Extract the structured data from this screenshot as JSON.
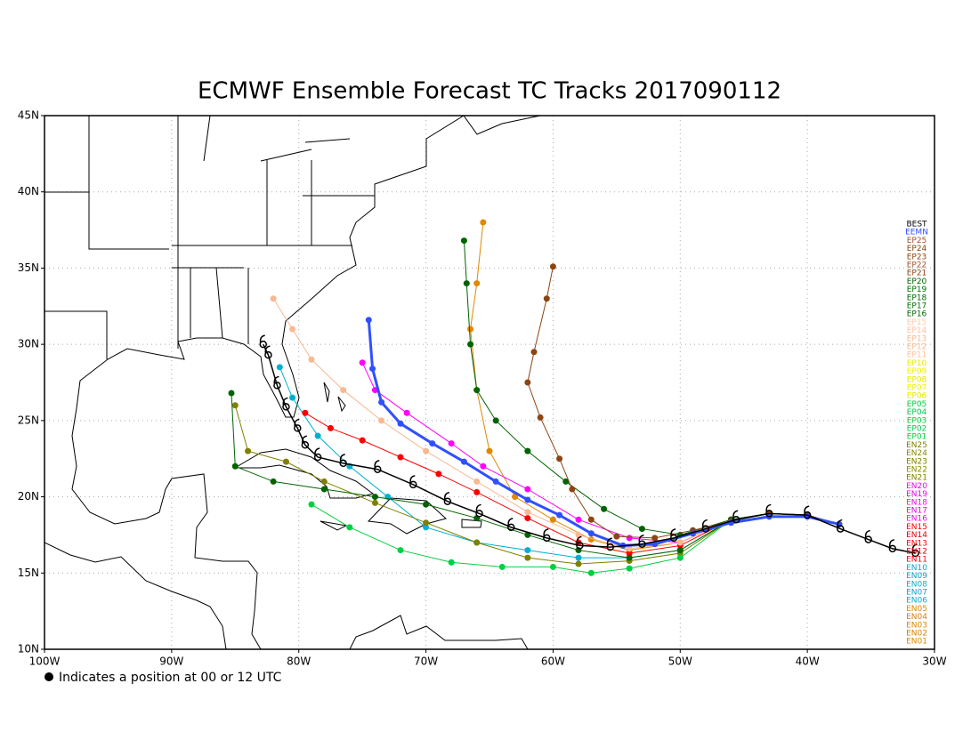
{
  "title": "ECMWF Ensemble Forecast TC Tracks 2017090112",
  "note": "Indicates a position at 00 or 12 UTC",
  "map": {
    "lonlim": [
      -100,
      -30
    ],
    "latlim": [
      10,
      45
    ],
    "lonticks": [
      {
        "value": -100,
        "label": "100W"
      },
      {
        "value": -90,
        "label": "90W"
      },
      {
        "value": -80,
        "label": "80W"
      },
      {
        "value": -70,
        "label": "70W"
      },
      {
        "value": -60,
        "label": "60W"
      },
      {
        "value": -50,
        "label": "50W"
      },
      {
        "value": -40,
        "label": "40W"
      },
      {
        "value": -30,
        "label": "30W"
      }
    ],
    "latticks": [
      {
        "value": 10,
        "label": "10N"
      },
      {
        "value": 15,
        "label": "15N"
      },
      {
        "value": 20,
        "label": "20N"
      },
      {
        "value": 25,
        "label": "25N"
      },
      {
        "value": 30,
        "label": "30N"
      },
      {
        "value": 35,
        "label": "35N"
      },
      {
        "value": 40,
        "label": "40N"
      },
      {
        "value": 45,
        "label": "45N"
      }
    ],
    "grid": true
  },
  "tracks": [
    {
      "name": "BEST",
      "color": "#000000",
      "lon": [
        -31.5,
        -33.3,
        -35.2,
        -37.4,
        -40,
        -43,
        -45.6,
        -48,
        -50.5,
        -53,
        -55.5,
        -57.9,
        -60.5,
        -63.3,
        -65.8,
        -68.3,
        -71,
        -73.8,
        -76.5,
        -78.5,
        -79.5,
        -80.1,
        -81,
        -81.7,
        -82.4,
        -82.8
      ],
      "lat": [
        16.3,
        16.6,
        17.2,
        17.9,
        18.8,
        18.9,
        18.5,
        17.9,
        17.3,
        16.9,
        16.7,
        16.8,
        17.3,
        18.0,
        18.9,
        19.7,
        20.8,
        21.8,
        22.2,
        22.6,
        23.4,
        24.5,
        25.9,
        27.3,
        29.3,
        30.0
      ]
    },
    {
      "name": "EEMN",
      "color": "#3050ff",
      "lon": [
        -37.5,
        -40,
        -43,
        -46,
        -49,
        -52,
        -54.5,
        -57,
        -59.5,
        -62,
        -64.5,
        -67,
        -69.5,
        -72,
        -73.5,
        -74.2,
        -74.5
      ],
      "lat": [
        18.2,
        18.7,
        18.7,
        18.3,
        17.6,
        16.9,
        16.8,
        17.6,
        18.8,
        19.8,
        21.0,
        22.3,
        23.5,
        24.8,
        26.2,
        28.4,
        31.6
      ]
    },
    {
      "name": "EP25",
      "color": "#a0522d"
    },
    {
      "name": "EP24",
      "color": "#8b4513",
      "lon": [
        -37.5,
        -40,
        -43,
        -46,
        -49,
        -52,
        -55,
        -57,
        -58.5,
        -59.5,
        -61,
        -62,
        -61.5,
        -60.5,
        -60
      ],
      "lat": [
        18.2,
        18.8,
        18.9,
        18.4,
        17.8,
        17.3,
        17.4,
        18.5,
        20.5,
        22.5,
        25.2,
        27.5,
        29.5,
        33.0,
        35.1
      ]
    },
    {
      "name": "EP23",
      "color": "#8b4513"
    },
    {
      "name": "EP22",
      "color": "#a0522d"
    },
    {
      "name": "EP21",
      "color": "#8b4513"
    },
    {
      "name": "EP20",
      "color": "#006400",
      "lon": [
        -37.5,
        -40,
        -43,
        -46,
        -50,
        -53,
        -56,
        -59,
        -62,
        -64.5,
        -66,
        -66.5,
        -66.8,
        -67
      ],
      "lat": [
        18.2,
        18.8,
        18.9,
        18.5,
        17.5,
        17.9,
        19.2,
        21.0,
        23.0,
        25.0,
        27.0,
        30.0,
        34.0,
        36.8
      ]
    },
    {
      "name": "EP19",
      "color": "#007000"
    },
    {
      "name": "EP18",
      "color": "#006400"
    },
    {
      "name": "EP17",
      "color": "#007000"
    },
    {
      "name": "EP16",
      "color": "#006400",
      "lon": [
        -37.5,
        -40,
        -43,
        -46,
        -50,
        -54,
        -58,
        -62,
        -66,
        -70,
        -74,
        -78,
        -82,
        -85,
        -85.3
      ],
      "lat": [
        18.2,
        18.8,
        18.9,
        18.5,
        16.5,
        16.0,
        16.5,
        17.5,
        18.6,
        19.5,
        20.0,
        20.5,
        21.0,
        22.0,
        26.8
      ]
    },
    {
      "name": "EP15",
      "color": "#ffc8a8"
    },
    {
      "name": "EP14",
      "color": "#ffc0a0"
    },
    {
      "name": "EP13",
      "color": "#f8b890"
    },
    {
      "name": "EP12",
      "color": "#f8b890",
      "lon": [
        -37.5,
        -40,
        -43,
        -46,
        -50,
        -54,
        -58,
        -62,
        -66,
        -70,
        -73.5,
        -76.5,
        -79,
        -80.5,
        -82
      ],
      "lat": [
        18.2,
        18.8,
        18.9,
        18.5,
        17.0,
        16.6,
        17.5,
        19.0,
        21.0,
        23.0,
        25.0,
        27.0,
        29.0,
        31.0,
        33.0
      ]
    },
    {
      "name": "EP11",
      "color": "#ffc0a0"
    },
    {
      "name": "EP10",
      "color": "#e8e800"
    },
    {
      "name": "EP09",
      "color": "#f0f000"
    },
    {
      "name": "EP08",
      "color": "#e8e800"
    },
    {
      "name": "EP07",
      "color": "#f0f000"
    },
    {
      "name": "EP06",
      "color": "#e8e800"
    },
    {
      "name": "EP05",
      "color": "#00d040",
      "lon": [
        -37.5,
        -40,
        -43,
        -46,
        -50,
        -54,
        -57,
        -60,
        -64,
        -68,
        -72,
        -76,
        -79
      ],
      "lat": [
        18.2,
        18.8,
        18.9,
        18.5,
        16.0,
        15.3,
        15.0,
        15.4,
        15.4,
        15.7,
        16.5,
        18.0,
        19.5
      ]
    },
    {
      "name": "EP04",
      "color": "#00c850"
    },
    {
      "name": "EP03",
      "color": "#00d040"
    },
    {
      "name": "EP02",
      "color": "#00c850"
    },
    {
      "name": "EP01",
      "color": "#00d040"
    },
    {
      "name": "EN25",
      "color": "#808000"
    },
    {
      "name": "EN24",
      "color": "#8a8a00"
    },
    {
      "name": "EN23",
      "color": "#808000",
      "lon": [
        -37.5,
        -40,
        -43,
        -46,
        -50,
        -54,
        -58,
        -62,
        -66,
        -70,
        -74,
        -78,
        -81,
        -84,
        -85
      ],
      "lat": [
        18.2,
        18.8,
        18.9,
        18.5,
        16.3,
        15.8,
        15.6,
        16.0,
        17.0,
        18.3,
        19.6,
        21.0,
        22.3,
        23.0,
        26.0
      ]
    },
    {
      "name": "EN22",
      "color": "#8a8a00"
    },
    {
      "name": "EN21",
      "color": "#808000"
    },
    {
      "name": "EN20",
      "color": "#ff00ff",
      "lon": [
        -37.5,
        -40,
        -43,
        -46,
        -50,
        -54,
        -58,
        -62,
        -65.5,
        -68,
        -71.5,
        -74,
        -75
      ],
      "lat": [
        18.2,
        18.8,
        18.9,
        18.5,
        17.0,
        17.3,
        18.5,
        20.5,
        22.0,
        23.5,
        25.5,
        27.0,
        28.8
      ]
    },
    {
      "name": "EN19",
      "color": "#ee00ee"
    },
    {
      "name": "EN18",
      "color": "#ff00ff"
    },
    {
      "name": "EN17",
      "color": "#ee00ee"
    },
    {
      "name": "EN16",
      "color": "#ff00ff"
    },
    {
      "name": "EN15",
      "color": "#ff0000",
      "lon": [
        -37.5,
        -40,
        -43,
        -46,
        -50,
        -54,
        -58,
        -62,
        -66,
        -69,
        -72,
        -75,
        -77.5,
        -79.5
      ],
      "lat": [
        18.2,
        18.8,
        18.9,
        18.5,
        16.8,
        16.3,
        17.0,
        18.6,
        20.3,
        21.5,
        22.6,
        23.7,
        24.5,
        25.5
      ]
    },
    {
      "name": "EN14",
      "color": "#e00000"
    },
    {
      "name": "EN13",
      "color": "#ff0000"
    },
    {
      "name": "EN12",
      "color": "#e00000"
    },
    {
      "name": "EN11",
      "color": "#ff0000"
    },
    {
      "name": "EN10",
      "color": "#00b0d0",
      "lon": [
        -37.5,
        -40,
        -43,
        -46,
        -50,
        -54,
        -58,
        -62,
        -66,
        -70,
        -73,
        -76,
        -78.5,
        -80.5,
        -81.5
      ],
      "lat": [
        18.2,
        18.8,
        18.9,
        18.5,
        16.5,
        16.0,
        16.0,
        16.5,
        17.0,
        18.0,
        20.0,
        22.0,
        24.0,
        26.5,
        28.5
      ]
    },
    {
      "name": "EN09",
      "color": "#00a8c8"
    },
    {
      "name": "EN08",
      "color": "#00b0d0"
    },
    {
      "name": "EN07",
      "color": "#00a8c8"
    },
    {
      "name": "EN06",
      "color": "#00b0d0"
    },
    {
      "name": "EN05",
      "color": "#e08800",
      "lon": [
        -37.5,
        -40,
        -43,
        -46,
        -50,
        -54,
        -57,
        -60,
        -63,
        -65,
        -66,
        -66.5,
        -66,
        -65.5
      ],
      "lat": [
        18.2,
        18.8,
        18.9,
        18.5,
        17.0,
        16.5,
        17.2,
        18.5,
        20.0,
        23.0,
        27.0,
        31.0,
        34.0,
        38.0
      ]
    },
    {
      "name": "EN04",
      "color": "#d88000"
    },
    {
      "name": "EN03",
      "color": "#e08800"
    },
    {
      "name": "EN02",
      "color": "#d88000"
    },
    {
      "name": "EN01",
      "color": "#e08800"
    }
  ]
}
